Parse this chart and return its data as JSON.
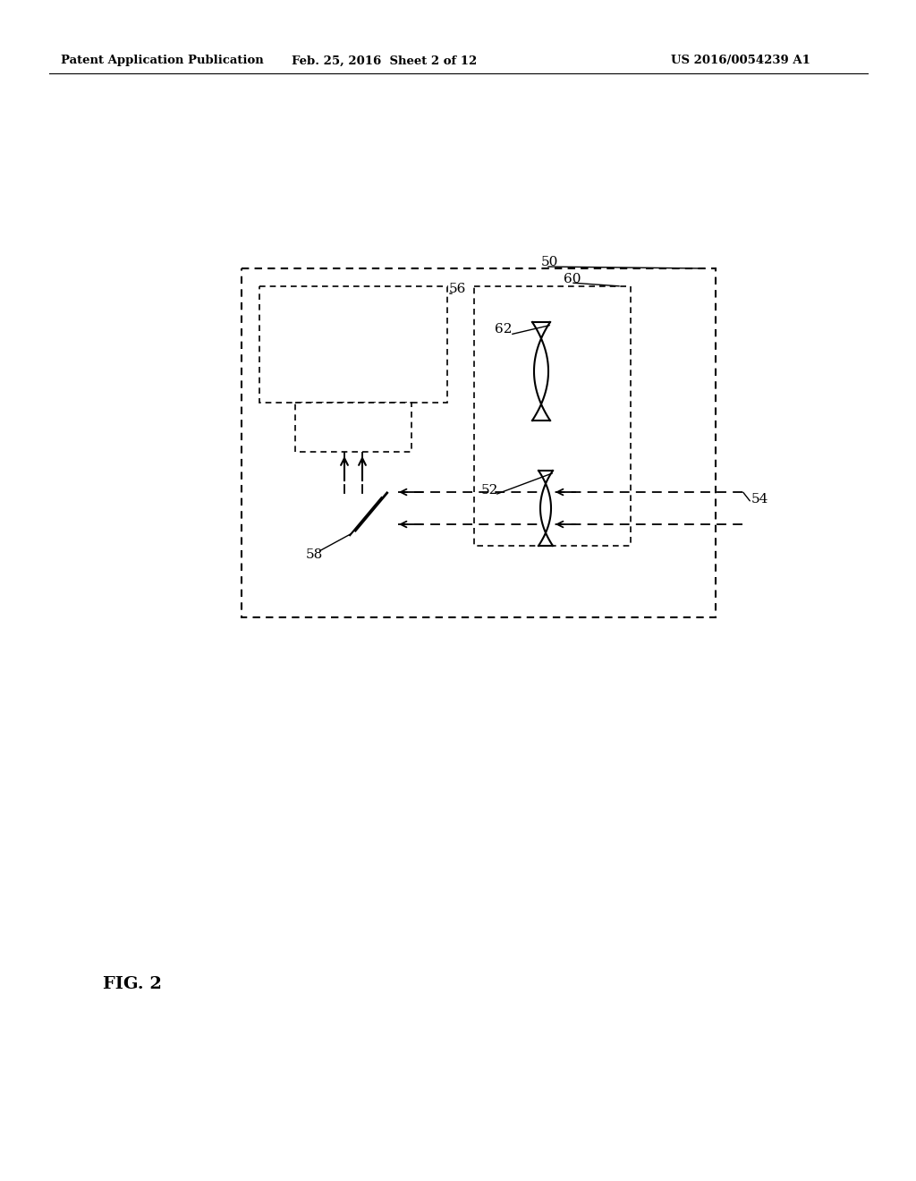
{
  "bg_color": "#ffffff",
  "line_color": "#000000",
  "header_left": "Patent Application Publication",
  "header_mid": "Feb. 25, 2016  Sheet 2 of 12",
  "header_right": "US 2016/0054239 A1",
  "fig_label": "FIG. 2",
  "label_50": "50",
  "label_56": "56",
  "label_60": "60",
  "label_62": "62",
  "label_52": "52",
  "label_54": "54",
  "label_58": "58",
  "font_size_header": 9.5,
  "font_size_label": 11
}
